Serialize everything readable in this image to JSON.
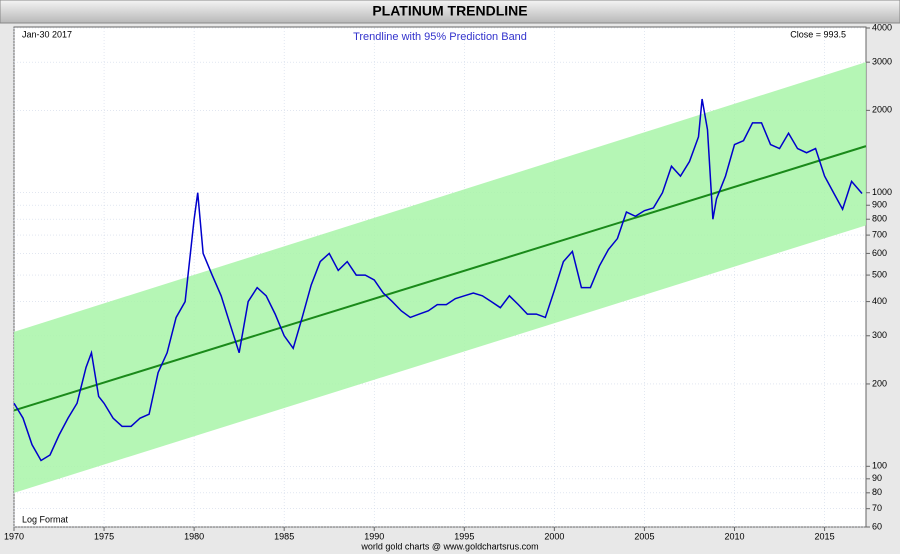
{
  "chart_data": {
    "type": "line",
    "title": "PLATINUM TRENDLINE",
    "subtitle": "Trendline with 95% Prediction Band",
    "date_label": "Jan-30  2017",
    "close_label": "Close = 993.5",
    "scale_label": "Log Format",
    "footer": "world gold charts @ www.goldchartsrus.com",
    "log_scale": true,
    "grid": true,
    "xlim": [
      1970,
      2017.3
    ],
    "xticks": [
      1970,
      1975,
      1980,
      1985,
      1990,
      1995,
      2000,
      2005,
      2010,
      2015
    ],
    "ylim": [
      60,
      4000
    ],
    "yticks": [
      60,
      70,
      80,
      90,
      100,
      200,
      300,
      400,
      500,
      600,
      700,
      800,
      900,
      1000,
      2000,
      3000,
      4000
    ],
    "band": {
      "color": "#a8f5a8",
      "x": [
        1970,
        2017.3
      ],
      "upper": [
        310,
        3000
      ],
      "lower": [
        80,
        760
      ]
    },
    "trend": {
      "color": "#1a8a1a",
      "x": [
        1970,
        2017.3
      ],
      "values": [
        160,
        1480
      ]
    },
    "price": {
      "color": "#0000cc",
      "x": [
        1970,
        1970.5,
        1971,
        1971.5,
        1972,
        1972.5,
        1973,
        1973.5,
        1974,
        1974.3,
        1974.7,
        1975,
        1975.5,
        1976,
        1976.5,
        1977,
        1977.5,
        1978,
        1978.5,
        1979,
        1979.5,
        1980,
        1980.2,
        1980.5,
        1981,
        1981.5,
        1982,
        1982.5,
        1983,
        1983.5,
        1984,
        1984.5,
        1985,
        1985.5,
        1986,
        1986.5,
        1987,
        1987.5,
        1988,
        1988.5,
        1989,
        1989.5,
        1990,
        1990.5,
        1991,
        1991.5,
        1992,
        1992.5,
        1993,
        1993.5,
        1994,
        1994.5,
        1995,
        1995.5,
        1996,
        1996.5,
        1997,
        1997.5,
        1998,
        1998.5,
        1999,
        1999.5,
        2000,
        2000.5,
        2001,
        2001.5,
        2002,
        2002.5,
        2003,
        2003.5,
        2004,
        2004.5,
        2005,
        2005.5,
        2006,
        2006.5,
        2007,
        2007.5,
        2008,
        2008.2,
        2008.5,
        2008.8,
        2009,
        2009.5,
        2010,
        2010.5,
        2011,
        2011.5,
        2012,
        2012.5,
        2013,
        2013.5,
        2014,
        2014.5,
        2015,
        2015.5,
        2016,
        2016.5,
        2017.08
      ],
      "values": [
        170,
        150,
        120,
        105,
        110,
        130,
        150,
        170,
        230,
        260,
        180,
        170,
        150,
        140,
        140,
        150,
        155,
        220,
        260,
        350,
        400,
        800,
        1000,
        600,
        500,
        420,
        330,
        260,
        400,
        450,
        420,
        360,
        300,
        270,
        350,
        460,
        560,
        600,
        520,
        560,
        500,
        500,
        480,
        430,
        400,
        370,
        350,
        360,
        370,
        390,
        390,
        410,
        420,
        430,
        420,
        400,
        380,
        420,
        390,
        360,
        360,
        350,
        440,
        560,
        610,
        450,
        450,
        540,
        620,
        680,
        850,
        820,
        860,
        880,
        1000,
        1250,
        1150,
        1300,
        1600,
        2200,
        1700,
        800,
        950,
        1150,
        1500,
        1550,
        1800,
        1800,
        1500,
        1450,
        1650,
        1450,
        1400,
        1450,
        1150,
        1000,
        870,
        1100,
        993.5
      ]
    }
  }
}
